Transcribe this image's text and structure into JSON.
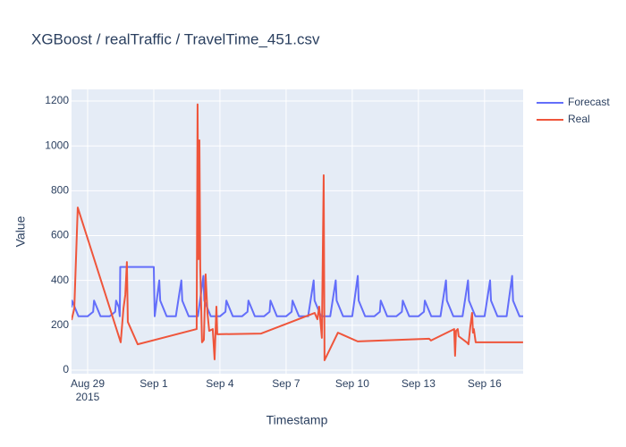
{
  "chart_data": {
    "type": "line",
    "title": "XGBoost / realTraffic / TravelTime_451.csv",
    "x_label": "Timestamp",
    "y_label": "Value",
    "xlim": [
      "2015-08-28 06:30",
      "2015-09-17 18:00"
    ],
    "ylim": [
      -16,
      1252
    ],
    "xticks": [
      {
        "value": "2015-08-29 00:00",
        "label": "Aug 29\n2015"
      },
      {
        "value": "2015-09-01 00:00",
        "label": "Sep 1"
      },
      {
        "value": "2015-09-04 00:00",
        "label": "Sep 4"
      },
      {
        "value": "2015-09-07 00:00",
        "label": "Sep 7"
      },
      {
        "value": "2015-09-10 00:00",
        "label": "Sep 10"
      },
      {
        "value": "2015-09-13 00:00",
        "label": "Sep 13"
      },
      {
        "value": "2015-09-16 00:00",
        "label": "Sep 16"
      }
    ],
    "yticks": [
      0,
      200,
      400,
      600,
      800,
      1000,
      1200
    ],
    "grid": true,
    "legend": "right",
    "series": [
      {
        "name": "Forecast",
        "color": "#636efa",
        "x": [
          "2015-08-28 06:30",
          "2015-08-28 07:00",
          "2015-08-28 10:00",
          "2015-08-28 14:00",
          "2015-08-29 00:00",
          "2015-08-29 06:00",
          "2015-08-29 07:00",
          "2015-08-29 10:00",
          "2015-08-29 14:00",
          "2015-08-30 00:00",
          "2015-08-30 06:00",
          "2015-08-30 07:00",
          "2015-08-30 10:00",
          "2015-08-30 11:00",
          "2015-08-30 11:30",
          "2015-09-01 00:00",
          "2015-09-01 01:00",
          "2015-09-01 06:00",
          "2015-09-01 07:00",
          "2015-09-01 10:00",
          "2015-09-01 14:00",
          "2015-09-02 00:00",
          "2015-09-02 06:00",
          "2015-09-02 07:00",
          "2015-09-02 10:00",
          "2015-09-02 14:00",
          "2015-09-03 00:00",
          "2015-09-03 06:00",
          "2015-09-03 07:00",
          "2015-09-03 10:00",
          "2015-09-03 14:00",
          "2015-09-04 00:00",
          "2015-09-04 06:00",
          "2015-09-04 07:00",
          "2015-09-04 10:00",
          "2015-09-04 14:00",
          "2015-09-05 00:00",
          "2015-09-05 06:00",
          "2015-09-05 07:00",
          "2015-09-05 10:00",
          "2015-09-05 14:00",
          "2015-09-06 00:00",
          "2015-09-06 06:00",
          "2015-09-06 07:00",
          "2015-09-06 10:00",
          "2015-09-06 14:00",
          "2015-09-07 00:00",
          "2015-09-07 06:00",
          "2015-09-07 07:00",
          "2015-09-07 10:00",
          "2015-09-07 14:00",
          "2015-09-08 00:00",
          "2015-09-08 06:00",
          "2015-09-08 07:00",
          "2015-09-08 10:00",
          "2015-09-08 14:00",
          "2015-09-09 00:00",
          "2015-09-09 06:00",
          "2015-09-09 07:00",
          "2015-09-09 10:00",
          "2015-09-09 14:00",
          "2015-09-10 00:00",
          "2015-09-10 06:00",
          "2015-09-10 07:00",
          "2015-09-10 10:00",
          "2015-09-10 14:00",
          "2015-09-11 00:00",
          "2015-09-11 06:00",
          "2015-09-11 07:00",
          "2015-09-11 10:00",
          "2015-09-11 14:00",
          "2015-09-12 00:00",
          "2015-09-12 06:00",
          "2015-09-12 07:00",
          "2015-09-12 10:00",
          "2015-09-12 14:00",
          "2015-09-13 00:00",
          "2015-09-13 06:00",
          "2015-09-13 07:00",
          "2015-09-13 10:00",
          "2015-09-13 14:00",
          "2015-09-14 00:00",
          "2015-09-14 06:00",
          "2015-09-14 07:00",
          "2015-09-14 10:00",
          "2015-09-14 14:00",
          "2015-09-15 00:00",
          "2015-09-15 06:00",
          "2015-09-15 07:00",
          "2015-09-15 10:00",
          "2015-09-15 14:00",
          "2015-09-16 00:00",
          "2015-09-16 06:00",
          "2015-09-16 07:00",
          "2015-09-16 10:00",
          "2015-09-16 14:00",
          "2015-09-17 00:00",
          "2015-09-17 06:00",
          "2015-09-17 07:00",
          "2015-09-17 10:00",
          "2015-09-17 14:00",
          "2015-09-17 18:00"
        ],
        "values": [
          280,
          310,
          280,
          240,
          240,
          260,
          310,
          280,
          240,
          240,
          260,
          310,
          280,
          240,
          460,
          460,
          240,
          400,
          310,
          280,
          240,
          240,
          400,
          310,
          280,
          240,
          240,
          420,
          310,
          280,
          240,
          240,
          260,
          310,
          280,
          240,
          240,
          260,
          310,
          280,
          240,
          240,
          260,
          310,
          280,
          240,
          240,
          260,
          310,
          280,
          240,
          240,
          400,
          310,
          280,
          240,
          240,
          400,
          310,
          280,
          240,
          240,
          420,
          310,
          280,
          240,
          240,
          260,
          310,
          280,
          240,
          240,
          260,
          310,
          280,
          240,
          240,
          260,
          310,
          280,
          240,
          240,
          400,
          310,
          280,
          240,
          240,
          400,
          310,
          280,
          240,
          240,
          400,
          310,
          280,
          240,
          240,
          420,
          310,
          280,
          240,
          240
        ]
      },
      {
        "name": "Real",
        "color": "#ef553b",
        "x": [
          "2015-08-28 06:30",
          "2015-08-28 09:30",
          "2015-08-28 13:15",
          "2015-08-30 12:00",
          "2015-08-30 15:00",
          "2015-08-30 17:00",
          "2015-08-30 18:45",
          "2015-08-30 19:45",
          "2015-08-31 06:30",
          "2015-09-02 22:40",
          "2015-09-02 23:40",
          "2015-09-03 00:40",
          "2015-09-03 01:40",
          "2015-09-03 02:35",
          "2015-09-03 04:30",
          "2015-09-03 06:30",
          "2015-09-03 08:25",
          "2015-09-03 10:25",
          "2015-09-03 12:20",
          "2015-09-03 16:10",
          "2015-09-03 18:10",
          "2015-09-03 20:10",
          "2015-09-03 21:05",
          "2015-09-05 20:50",
          "2015-09-08 07:05",
          "2015-09-08 10:05",
          "2015-09-08 12:00",
          "2015-09-08 14:55",
          "2015-09-08 16:55",
          "2015-09-08 17:50",
          "2015-09-09 08:25",
          "2015-09-10 05:55",
          "2015-09-13 11:40",
          "2015-09-13 13:40",
          "2015-09-14 14:55",
          "2015-09-14 15:55",
          "2015-09-14 16:55",
          "2015-09-14 18:50",
          "2015-09-14 19:50",
          "2015-09-15 00:40",
          "2015-09-15 04:35",
          "2015-09-15 06:30",
          "2015-09-15 08:25",
          "2015-09-15 10:25",
          "2015-09-15 11:25",
          "2015-09-15 12:20",
          "2015-09-15 14:20",
          "2015-09-17 17:55"
        ],
        "values": [
          223,
          275,
          725,
          124,
          275,
          335,
          482,
          215,
          115,
          183,
          1185,
          495,
          1025,
          455,
          124,
          135,
          427,
          255,
          175,
          183,
          48,
          283,
          160,
          163,
          255,
          227,
          283,
          144,
          869,
          44,
          167,
          128,
          140,
          132,
          183,
          64,
          175,
          183,
          151,
          136,
          124,
          115,
          191,
          255,
          167,
          183,
          124,
          124
        ]
      }
    ]
  }
}
